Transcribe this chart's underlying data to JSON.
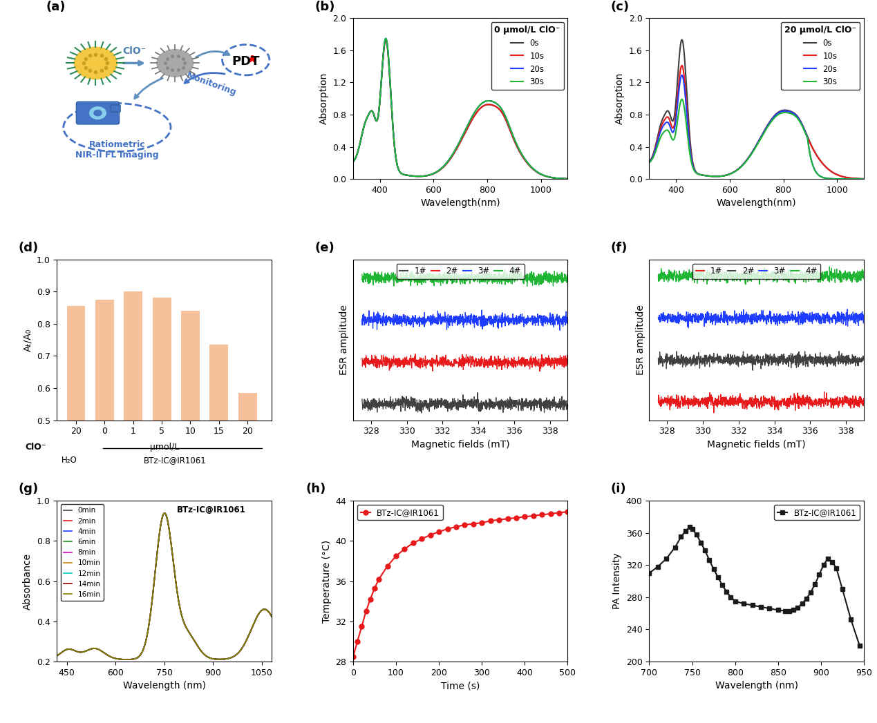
{
  "panel_b": {
    "title": "0 μmol/L ClO⁻",
    "xlabel": "Wavelength(nm)",
    "ylabel": "Absorption",
    "ylim": [
      0.0,
      2.0
    ],
    "xlim": [
      300,
      1100
    ],
    "yticks": [
      0.0,
      0.4,
      0.8,
      1.2,
      1.6,
      2.0
    ],
    "xticks": [
      400,
      600,
      800,
      1000
    ],
    "colors": [
      "#404040",
      "#e8191a",
      "#1e3cff",
      "#1db531"
    ],
    "labels": [
      "0s",
      "10s",
      "20s",
      "30s"
    ]
  },
  "panel_c": {
    "title": "20 μmol/L ClO⁻",
    "xlabel": "Wavelength(nm)",
    "ylabel": "Absorption",
    "ylim": [
      0.0,
      2.0
    ],
    "xlim": [
      300,
      1100
    ],
    "yticks": [
      0.0,
      0.4,
      0.8,
      1.2,
      1.6,
      2.0
    ],
    "xticks": [
      400,
      600,
      800,
      1000
    ],
    "colors": [
      "#404040",
      "#e8191a",
      "#1e3cff",
      "#1db531"
    ],
    "labels": [
      "0s",
      "10s",
      "20s",
      "30s"
    ]
  },
  "panel_d": {
    "ylabel": "Aₜ/A₀",
    "ylim": [
      0.5,
      1.0
    ],
    "yticks": [
      0.5,
      0.6,
      0.7,
      0.8,
      0.9,
      1.0
    ],
    "categories": [
      "20",
      "0",
      "1",
      "5",
      "10",
      "15",
      "20"
    ],
    "values": [
      0.855,
      0.875,
      0.9,
      0.882,
      0.84,
      0.735,
      0.586
    ],
    "bar_color": "#f5c09a"
  },
  "panel_e": {
    "xlabel": "Magnetic fields (mT)",
    "ylabel": "ESR amplitude",
    "xlim": [
      327,
      339
    ],
    "xticks": [
      328,
      330,
      332,
      334,
      336,
      338
    ],
    "colors": [
      "#404040",
      "#e8191a",
      "#1e3cff",
      "#1db531"
    ],
    "labels": [
      "1#",
      "2#",
      "3#",
      "4#"
    ]
  },
  "panel_f": {
    "xlabel": "Magnetic fields (mT)",
    "ylabel": "ESR amplitude",
    "xlim": [
      327,
      339
    ],
    "xticks": [
      328,
      330,
      332,
      334,
      336,
      338
    ],
    "colors": [
      "#e8191a",
      "#404040",
      "#1e3cff",
      "#1db531"
    ],
    "labels": [
      "1#",
      "2#",
      "3#",
      "4#"
    ]
  },
  "panel_g": {
    "title": "BTz-IC@IR1061",
    "xlabel": "Wavelength (nm)",
    "ylabel": "Absorbance",
    "ylim": [
      0.2,
      1.0
    ],
    "xlim": [
      420,
      1080
    ],
    "yticks": [
      0.2,
      0.4,
      0.6,
      0.8,
      1.0
    ],
    "xticks": [
      450,
      600,
      750,
      900,
      1050
    ],
    "colors": [
      "#404040",
      "#e8191a",
      "#1e3cff",
      "#228B22",
      "#cc00cc",
      "#cc8800",
      "#00cccc",
      "#8B0000",
      "#808000"
    ],
    "labels": [
      "0min",
      "2min",
      "4min",
      "6min",
      "8min",
      "10min",
      "12min",
      "14min",
      "16min"
    ]
  },
  "panel_h": {
    "title": "BTz-IC@IR1061",
    "xlabel": "Time (s)",
    "ylabel": "Temperature (°C)",
    "ylim": [
      28,
      44
    ],
    "xlim": [
      0,
      500
    ],
    "yticks": [
      28,
      32,
      36,
      40,
      44
    ],
    "xticks": [
      0,
      100,
      200,
      300,
      400,
      500
    ],
    "color": "#e8191a",
    "time_points": [
      0,
      10,
      20,
      30,
      40,
      50,
      60,
      80,
      100,
      120,
      140,
      160,
      180,
      200,
      220,
      240,
      260,
      280,
      300,
      320,
      340,
      360,
      380,
      400,
      420,
      440,
      460,
      480,
      500
    ],
    "temp_values": [
      28.5,
      30.0,
      31.5,
      33.0,
      34.2,
      35.3,
      36.2,
      37.5,
      38.5,
      39.2,
      39.8,
      40.2,
      40.6,
      40.9,
      41.2,
      41.4,
      41.6,
      41.7,
      41.8,
      42.0,
      42.1,
      42.2,
      42.3,
      42.4,
      42.5,
      42.6,
      42.7,
      42.8,
      42.9
    ]
  },
  "panel_i": {
    "title": "BTz-IC@IR1061",
    "xlabel": "Wavelength (nm)",
    "ylabel": "PA Intensity",
    "ylim": [
      200,
      400
    ],
    "xlim": [
      700,
      950
    ],
    "yticks": [
      200,
      240,
      280,
      320,
      360,
      400
    ],
    "xticks": [
      700,
      750,
      800,
      850,
      900,
      950
    ],
    "color": "#1a1a1a",
    "wavelengths": [
      700,
      710,
      720,
      730,
      737,
      742,
      747,
      750,
      755,
      760,
      765,
      770,
      775,
      780,
      785,
      790,
      795,
      800,
      810,
      820,
      830,
      840,
      850,
      858,
      863,
      868,
      873,
      878,
      883,
      888,
      893,
      898,
      903,
      908,
      913,
      918,
      925,
      935,
      945
    ],
    "pa_values": [
      310,
      318,
      328,
      342,
      355,
      362,
      367,
      365,
      358,
      348,
      338,
      326,
      315,
      305,
      295,
      287,
      280,
      275,
      272,
      270,
      268,
      266,
      264,
      263,
      263,
      264,
      267,
      272,
      278,
      286,
      296,
      308,
      320,
      328,
      324,
      316,
      290,
      252,
      220
    ]
  }
}
